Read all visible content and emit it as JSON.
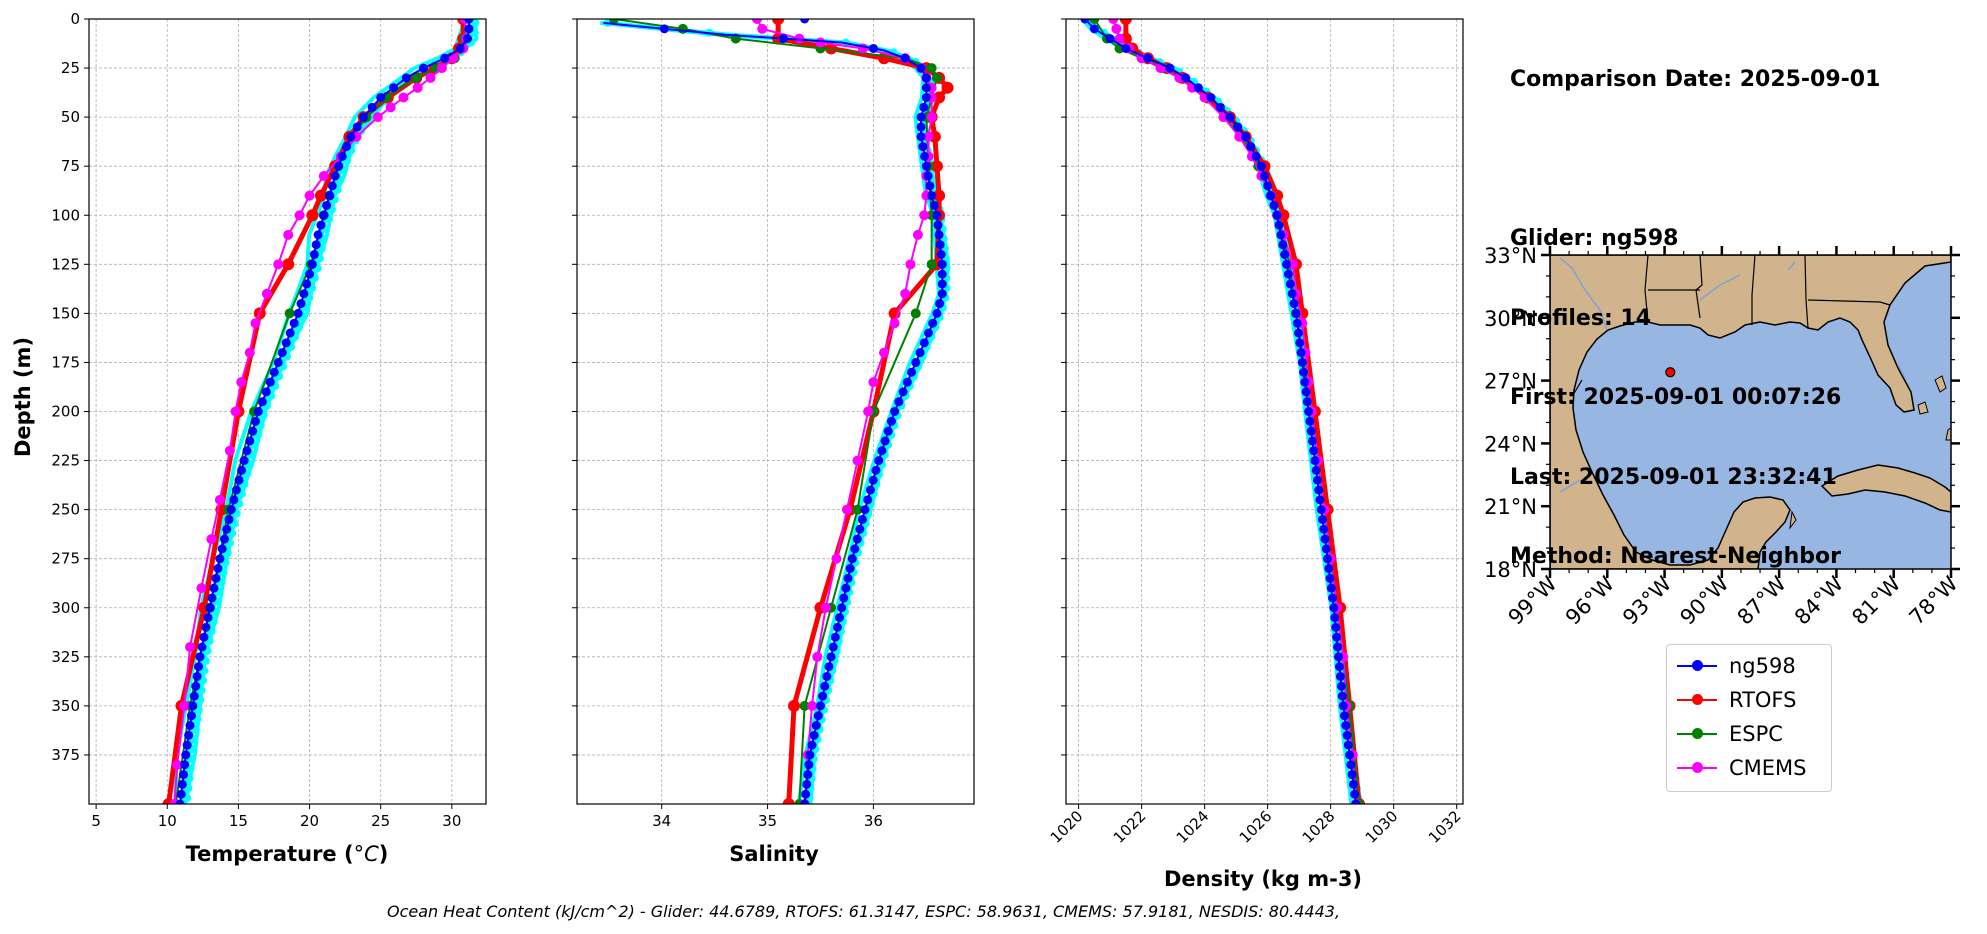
{
  "info": {
    "comparison_date": "Comparison Date: 2025-09-01",
    "glider": "Glider: ng598",
    "profiles": "Profiles: 14",
    "first": "First: 2025-09-01 00:07:26",
    "last": "Last: 2025-09-01 23:32:41",
    "method": "Method: Nearest-Neighbor"
  },
  "caption": "Ocean Heat Content (kJ/cm^2) - Glider: 44.6789,  RTOFS: 61.3147,  ESPC: 58.9631,  CMEMS: 57.9181,  NESDIS: 80.4443,",
  "legend": [
    {
      "label": "ng598",
      "color": "#0000ff"
    },
    {
      "label": "RTOFS",
      "color": "#ff0000"
    },
    {
      "label": "ESPC",
      "color": "#008000"
    },
    {
      "label": "CMEMS",
      "color": "#ff00ff"
    }
  ],
  "colors": {
    "glider_cloud": "#00ffff",
    "land": "#d2b48c",
    "ocean": "#97b6e1"
  },
  "map": {
    "lat_labels": [
      "33°N",
      "30°N",
      "27°N",
      "24°N",
      "21°N",
      "18°N"
    ],
    "lon_labels": [
      "99°W",
      "96°W",
      "93°W",
      "90°W",
      "87°W",
      "84°W",
      "81°W",
      "78°W"
    ],
    "marker": {
      "lon": -92.7,
      "lat": 27.4
    }
  },
  "chart_data": [
    {
      "type": "line",
      "title": "",
      "xlabel": "Temperature (°C)",
      "ylabel": "Depth (m)",
      "xlim": [
        4.5,
        32.4
      ],
      "ylim": [
        400,
        0
      ],
      "xticks": [
        5,
        10,
        15,
        20,
        25,
        30
      ],
      "yticks": [
        0,
        25,
        50,
        75,
        100,
        125,
        150,
        175,
        200,
        225,
        250,
        275,
        300,
        325,
        350,
        375
      ],
      "grid": true,
      "series": [
        {
          "name": "ng598",
          "depth": [
            0,
            5,
            10,
            15,
            20,
            25,
            30,
            40,
            50,
            60,
            70,
            80,
            90,
            100,
            110,
            125,
            140,
            150,
            175,
            200,
            225,
            250,
            275,
            300,
            325,
            350,
            375,
            400
          ],
          "values": [
            31.2,
            31.2,
            31.1,
            30.6,
            29.5,
            28.0,
            26.8,
            25.0,
            23.8,
            22.9,
            22.3,
            21.8,
            21.4,
            21.0,
            20.6,
            20.2,
            19.6,
            19.2,
            17.8,
            16.4,
            15.4,
            14.5,
            13.7,
            13.0,
            12.3,
            11.8,
            11.3,
            10.9
          ]
        },
        {
          "name": "RTOFS",
          "depth": [
            0,
            10,
            15,
            20,
            25,
            30,
            40,
            50,
            60,
            75,
            90,
            100,
            125,
            150,
            200,
            250,
            300,
            350,
            400
          ],
          "values": [
            30.8,
            30.8,
            30.5,
            30.0,
            28.8,
            27.5,
            25.5,
            23.8,
            22.8,
            21.8,
            20.8,
            20.2,
            18.5,
            16.5,
            15.0,
            13.8,
            12.6,
            11.0,
            10.1
          ]
        },
        {
          "name": "ESPC",
          "depth": [
            0,
            10,
            15,
            20,
            25,
            30,
            40,
            50,
            60,
            75,
            90,
            100,
            125,
            150,
            200,
            250,
            300,
            350,
            400
          ],
          "values": [
            30.9,
            30.9,
            30.7,
            30.2,
            28.9,
            27.5,
            25.4,
            24.0,
            23.0,
            22.0,
            21.4,
            21.0,
            20.1,
            18.6,
            16.1,
            14.3,
            13.0,
            11.6,
            10.6
          ]
        },
        {
          "name": "CMEMS",
          "depth": [
            0,
            10,
            15,
            20,
            25,
            30,
            35,
            40,
            45,
            50,
            60,
            70,
            80,
            90,
            100,
            110,
            125,
            140,
            155,
            170,
            185,
            200,
            220,
            245,
            265,
            290,
            320,
            350,
            380,
            400
          ],
          "values": [
            30.9,
            31.0,
            30.8,
            30.1,
            29.3,
            28.5,
            27.6,
            26.6,
            25.7,
            24.8,
            23.3,
            22.2,
            21.0,
            20.0,
            19.3,
            18.5,
            17.8,
            17.0,
            16.2,
            15.8,
            15.2,
            14.8,
            14.4,
            13.7,
            13.1,
            12.4,
            11.6,
            11.2,
            10.7,
            10.5
          ]
        }
      ]
    },
    {
      "type": "line",
      "title": "",
      "xlabel": "Salinity",
      "ylabel": "",
      "xlim": [
        33.2,
        36.95
      ],
      "ylim": [
        400,
        0
      ],
      "xticks": [
        34,
        35,
        36
      ],
      "yticks": [
        0,
        25,
        50,
        75,
        100,
        125,
        150,
        175,
        200,
        225,
        250,
        275,
        300,
        325,
        350,
        375
      ],
      "grid": true,
      "series": [
        {
          "name": "ng598",
          "depth": [
            2,
            8,
            12,
            16,
            20,
            25,
            30,
            40,
            50,
            60,
            75,
            90,
            100,
            110,
            125,
            140,
            150,
            175,
            200,
            225,
            250,
            275,
            300,
            325,
            350,
            375,
            400
          ],
          "values": [
            33.45,
            34.6,
            35.7,
            36.1,
            36.3,
            36.45,
            36.5,
            36.5,
            36.45,
            36.45,
            36.5,
            36.55,
            36.6,
            36.62,
            36.65,
            36.65,
            36.6,
            36.4,
            36.2,
            36.05,
            35.92,
            35.8,
            35.7,
            35.6,
            35.5,
            35.4,
            35.35
          ]
        },
        {
          "name": "RTOFS",
          "depth": [
            0,
            10,
            15,
            20,
            25,
            30,
            35,
            40,
            50,
            60,
            75,
            90,
            100,
            125,
            150,
            200,
            250,
            300,
            350,
            400
          ],
          "values": [
            35.1,
            35.1,
            35.6,
            36.1,
            36.5,
            36.62,
            36.7,
            36.62,
            36.55,
            36.58,
            36.6,
            36.62,
            36.62,
            36.6,
            36.2,
            36.0,
            35.78,
            35.5,
            35.25,
            35.2
          ]
        },
        {
          "name": "ESPC",
          "depth": [
            0,
            5,
            10,
            15,
            20,
            25,
            30,
            40,
            50,
            75,
            100,
            125,
            150,
            200,
            250,
            300,
            350,
            400
          ],
          "values": [
            33.55,
            34.2,
            34.7,
            35.5,
            36.3,
            36.55,
            36.6,
            36.55,
            36.5,
            36.52,
            36.55,
            36.55,
            36.4,
            36.0,
            35.85,
            35.6,
            35.35,
            35.3
          ]
        },
        {
          "name": "CMEMS",
          "depth": [
            0,
            5,
            10,
            12,
            15,
            20,
            25,
            30,
            35,
            40,
            50,
            60,
            70,
            80,
            90,
            100,
            110,
            125,
            140,
            155,
            170,
            185,
            200,
            225,
            250,
            275,
            300,
            325,
            350,
            375,
            400
          ],
          "values": [
            34.9,
            34.95,
            35.3,
            35.5,
            35.9,
            36.3,
            36.45,
            36.5,
            36.55,
            36.55,
            36.55,
            36.52,
            36.52,
            36.5,
            36.5,
            36.48,
            36.42,
            36.35,
            36.3,
            36.2,
            36.1,
            36.0,
            35.95,
            35.85,
            35.75,
            35.65,
            35.55,
            35.47,
            35.42,
            35.38,
            35.35
          ]
        }
      ]
    },
    {
      "type": "line",
      "title": "",
      "xlabel": "Density (kg m-3)",
      "ylabel": "",
      "xlim": [
        1019.6,
        1032.2
      ],
      "ylim": [
        400,
        0
      ],
      "xticks": [
        1020,
        1022,
        1024,
        1026,
        1028,
        1030,
        1032
      ],
      "yticks": [
        0,
        25,
        50,
        75,
        100,
        125,
        150,
        175,
        200,
        225,
        250,
        275,
        300,
        325,
        350,
        375
      ],
      "grid": true,
      "series": [
        {
          "name": "ng598",
          "depth": [
            0,
            5,
            10,
            15,
            20,
            25,
            30,
            40,
            50,
            60,
            75,
            90,
            100,
            125,
            150,
            175,
            200,
            250,
            300,
            350,
            400
          ],
          "values": [
            1020.2,
            1020.5,
            1021.0,
            1021.5,
            1022.2,
            1022.9,
            1023.4,
            1024.2,
            1024.8,
            1025.3,
            1025.8,
            1026.1,
            1026.3,
            1026.6,
            1026.9,
            1027.1,
            1027.3,
            1027.7,
            1028.1,
            1028.4,
            1028.8
          ]
        },
        {
          "name": "RTOFS",
          "depth": [
            0,
            10,
            15,
            20,
            25,
            30,
            40,
            50,
            60,
            75,
            90,
            100,
            125,
            150,
            200,
            250,
            300,
            350,
            400
          ],
          "values": [
            1021.5,
            1021.5,
            1021.7,
            1022.2,
            1022.8,
            1023.3,
            1024.1,
            1024.8,
            1025.3,
            1025.9,
            1026.3,
            1026.5,
            1026.9,
            1027.1,
            1027.5,
            1027.9,
            1028.3,
            1028.6,
            1028.9
          ]
        },
        {
          "name": "ESPC",
          "depth": [
            0,
            10,
            15,
            20,
            25,
            30,
            40,
            50,
            60,
            75,
            90,
            100,
            125,
            150,
            200,
            250,
            300,
            350,
            400
          ],
          "values": [
            1020.5,
            1020.9,
            1021.3,
            1022.0,
            1022.7,
            1023.2,
            1024.0,
            1024.6,
            1025.2,
            1025.7,
            1026.1,
            1026.3,
            1026.7,
            1026.9,
            1027.4,
            1027.8,
            1028.2,
            1028.6,
            1028.9
          ]
        },
        {
          "name": "CMEMS",
          "depth": [
            0,
            5,
            10,
            15,
            20,
            25,
            30,
            35,
            40,
            50,
            60,
            70,
            80,
            90,
            100,
            110,
            125,
            140,
            155,
            170,
            185,
            200,
            225,
            250,
            275,
            300,
            325,
            350,
            375,
            400
          ],
          "values": [
            1021.1,
            1021.2,
            1021.3,
            1021.6,
            1022.0,
            1022.6,
            1023.2,
            1023.6,
            1024.0,
            1024.6,
            1025.1,
            1025.5,
            1025.8,
            1026.1,
            1026.3,
            1026.5,
            1026.8,
            1026.9,
            1027.1,
            1027.2,
            1027.3,
            1027.4,
            1027.6,
            1027.8,
            1028.0,
            1028.2,
            1028.4,
            1028.5,
            1028.7,
            1028.8
          ]
        }
      ]
    }
  ]
}
